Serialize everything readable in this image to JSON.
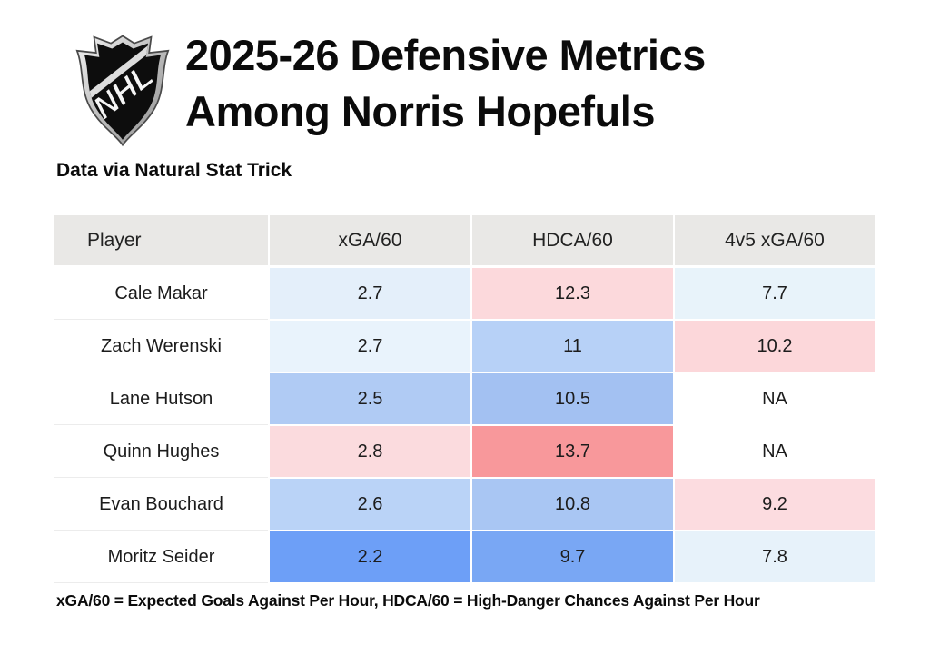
{
  "header": {
    "logo": "NHL",
    "title_line1": "2025-26 Defensive Metrics",
    "title_line2": "Among Norris Hopefuls",
    "subtitle": "Data via Natural Stat Trick"
  },
  "table": {
    "columns": [
      "Player",
      "xGA/60",
      "HDCA/60",
      "4v5 xGA/60"
    ],
    "header_bg": "#e9e8e6",
    "rows": [
      {
        "player": "Cale Makar",
        "cells": [
          {
            "value": "2.7",
            "bg": "#e4effa"
          },
          {
            "value": "12.3",
            "bg": "#fcd9dc"
          },
          {
            "value": "7.7",
            "bg": "#e8f3fa"
          }
        ]
      },
      {
        "player": "Zach Werenski",
        "cells": [
          {
            "value": "2.7",
            "bg": "#e9f3fc"
          },
          {
            "value": "11",
            "bg": "#b7d1f7"
          },
          {
            "value": "10.2",
            "bg": "#fcd7da"
          }
        ]
      },
      {
        "player": "Lane Hutson",
        "cells": [
          {
            "value": "2.5",
            "bg": "#b0cbf4"
          },
          {
            "value": "10.5",
            "bg": "#a3c1f2"
          },
          {
            "value": "NA",
            "bg": "#ffffff"
          }
        ]
      },
      {
        "player": "Quinn Hughes",
        "cells": [
          {
            "value": "2.8",
            "bg": "#fbdbde"
          },
          {
            "value": "13.7",
            "bg": "#f8989b"
          },
          {
            "value": "NA",
            "bg": "#ffffff"
          }
        ]
      },
      {
        "player": "Evan Bouchard",
        "cells": [
          {
            "value": "2.6",
            "bg": "#bad3f7"
          },
          {
            "value": "10.8",
            "bg": "#a9c6f3"
          },
          {
            "value": "9.2",
            "bg": "#fcdce0"
          }
        ]
      },
      {
        "player": "Moritz Seider",
        "cells": [
          {
            "value": "2.2",
            "bg": "#6d9ff7"
          },
          {
            "value": "9.7",
            "bg": "#79a7f4"
          },
          {
            "value": "7.8",
            "bg": "#e7f2fa"
          }
        ]
      }
    ]
  },
  "footer": {
    "note": "xGA/60 = Expected Goals Against Per Hour, HDCA/60 = High-Danger Chances Against Per Hour"
  },
  "chart_data": {
    "type": "table",
    "title": "2025-26 Defensive Metrics Among Norris Hopefuls",
    "subtitle": "Data via Natural Stat Trick",
    "categories": [
      "Cale Makar",
      "Zach Werenski",
      "Lane Hutson",
      "Quinn Hughes",
      "Evan Bouchard",
      "Moritz Seider"
    ],
    "series": [
      {
        "name": "xGA/60",
        "values": [
          2.7,
          2.7,
          2.5,
          2.8,
          2.6,
          2.2
        ]
      },
      {
        "name": "HDCA/60",
        "values": [
          12.3,
          11,
          10.5,
          13.7,
          10.8,
          9.7
        ]
      },
      {
        "name": "4v5 xGA/60",
        "values": [
          7.7,
          10.2,
          null,
          null,
          9.2,
          7.8
        ]
      }
    ],
    "na_label": "NA",
    "color_scale": {
      "good_low": "#6d9ff7",
      "neutral": "#ffffff",
      "bad_high": "#f8989b"
    },
    "annotation": "xGA/60 = Expected Goals Against Per Hour, HDCA/60 = High-Danger Chances Against Per Hour"
  }
}
